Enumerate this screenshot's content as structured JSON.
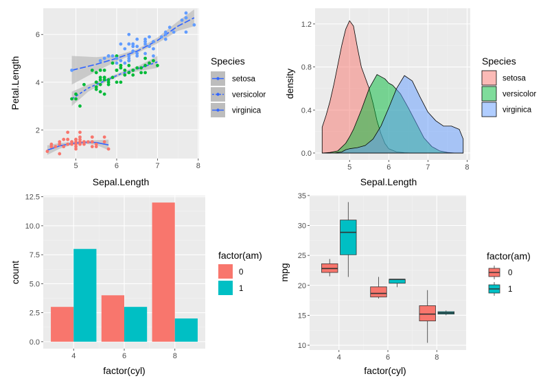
{
  "colors": {
    "panel_bg": "#EBEBEB",
    "grid_major": "#FFFFFF",
    "grid_minor": "#F5F5F5",
    "setosa": "#F8766D",
    "versicolor": "#00BA38",
    "virginica": "#619CFF",
    "smooth_line": "#3366FF",
    "smooth_band": "#BDBDBD",
    "am0": "#F8766D",
    "am1": "#00BFC4"
  },
  "chart_data": [
    {
      "type": "scatter",
      "xlabel": "Sepal.Length",
      "ylabel": "Petal.Length",
      "xlim": [
        4.2,
        8.02
      ],
      "ylim": [
        0.8,
        7.1
      ],
      "xticks": [
        5,
        6,
        7,
        8
      ],
      "yticks": [
        2,
        4,
        6
      ],
      "grid": true,
      "legend": {
        "title": "Species",
        "position": "right",
        "entries": [
          "setosa",
          "versicolor",
          "virginica"
        ]
      },
      "series": [
        {
          "name": "setosa",
          "points": [
            [
              5.1,
              1.4
            ],
            [
              4.9,
              1.4
            ],
            [
              4.7,
              1.3
            ],
            [
              4.6,
              1.5
            ],
            [
              5.0,
              1.4
            ],
            [
              5.4,
              1.7
            ],
            [
              4.6,
              1.4
            ],
            [
              5.0,
              1.5
            ],
            [
              4.4,
              1.4
            ],
            [
              4.9,
              1.5
            ],
            [
              5.4,
              1.5
            ],
            [
              4.8,
              1.6
            ],
            [
              4.8,
              1.4
            ],
            [
              4.3,
              1.1
            ],
            [
              5.8,
              1.2
            ],
            [
              5.7,
              1.5
            ],
            [
              5.4,
              1.3
            ],
            [
              5.1,
              1.4
            ],
            [
              5.7,
              1.7
            ],
            [
              5.1,
              1.5
            ],
            [
              5.4,
              1.7
            ],
            [
              5.1,
              1.5
            ],
            [
              4.6,
              1.0
            ],
            [
              5.1,
              1.7
            ],
            [
              4.8,
              1.9
            ],
            [
              5.0,
              1.6
            ],
            [
              5.0,
              1.6
            ],
            [
              5.2,
              1.5
            ],
            [
              5.2,
              1.4
            ],
            [
              4.7,
              1.6
            ],
            [
              4.8,
              1.6
            ],
            [
              5.4,
              1.5
            ],
            [
              5.2,
              1.5
            ],
            [
              5.5,
              1.4
            ],
            [
              4.9,
              1.5
            ],
            [
              5.0,
              1.2
            ],
            [
              5.5,
              1.3
            ],
            [
              4.9,
              1.4
            ],
            [
              4.4,
              1.3
            ],
            [
              5.1,
              1.5
            ],
            [
              5.0,
              1.3
            ],
            [
              4.5,
              1.3
            ],
            [
              4.4,
              1.3
            ],
            [
              5.0,
              1.6
            ],
            [
              5.1,
              1.9
            ],
            [
              4.8,
              1.4
            ],
            [
              5.1,
              1.6
            ],
            [
              4.6,
              1.4
            ],
            [
              5.3,
              1.5
            ],
            [
              5.0,
              1.4
            ]
          ],
          "smooth": [
            [
              4.3,
              1.15
            ],
            [
              4.6,
              1.33
            ],
            [
              4.9,
              1.43
            ],
            [
              5.2,
              1.48
            ],
            [
              5.5,
              1.47
            ],
            [
              5.8,
              1.37
            ]
          ],
          "band": [
            0.2,
            0.12,
            0.06,
            0.06,
            0.1,
            0.22
          ]
        },
        {
          "name": "versicolor",
          "points": [
            [
              7.0,
              4.7
            ],
            [
              6.4,
              4.5
            ],
            [
              6.9,
              4.9
            ],
            [
              5.5,
              4.0
            ],
            [
              6.5,
              4.6
            ],
            [
              5.7,
              4.5
            ],
            [
              6.3,
              4.7
            ],
            [
              4.9,
              3.3
            ],
            [
              6.6,
              4.6
            ],
            [
              5.2,
              3.9
            ],
            [
              5.0,
              3.5
            ],
            [
              5.9,
              4.2
            ],
            [
              6.0,
              4.0
            ],
            [
              6.1,
              4.7
            ],
            [
              5.6,
              3.6
            ],
            [
              6.7,
              4.4
            ],
            [
              5.6,
              4.5
            ],
            [
              5.8,
              4.1
            ],
            [
              6.2,
              4.5
            ],
            [
              5.6,
              3.9
            ],
            [
              5.9,
              4.8
            ],
            [
              6.1,
              4.0
            ],
            [
              6.3,
              4.9
            ],
            [
              6.1,
              4.7
            ],
            [
              6.4,
              4.3
            ],
            [
              6.6,
              4.4
            ],
            [
              6.8,
              4.8
            ],
            [
              6.7,
              5.0
            ],
            [
              6.0,
              4.5
            ],
            [
              5.7,
              3.5
            ],
            [
              5.5,
              3.8
            ],
            [
              5.5,
              3.7
            ],
            [
              5.8,
              3.9
            ],
            [
              6.0,
              5.1
            ],
            [
              5.4,
              4.5
            ],
            [
              6.0,
              4.5
            ],
            [
              6.7,
              4.7
            ],
            [
              6.3,
              4.4
            ],
            [
              5.6,
              4.1
            ],
            [
              5.5,
              4.0
            ],
            [
              5.5,
              4.4
            ],
            [
              6.1,
              4.6
            ],
            [
              5.8,
              4.0
            ],
            [
              5.0,
              3.3
            ],
            [
              5.6,
              4.2
            ],
            [
              5.7,
              4.2
            ],
            [
              5.7,
              4.2
            ],
            [
              6.2,
              4.3
            ],
            [
              5.1,
              3.0
            ],
            [
              5.7,
              4.1
            ]
          ],
          "smooth": [
            [
              4.9,
              3.3
            ],
            [
              5.3,
              3.75
            ],
            [
              5.7,
              4.05
            ],
            [
              6.1,
              4.35
            ],
            [
              6.5,
              4.55
            ],
            [
              7.0,
              4.85
            ]
          ],
          "band": [
            0.3,
            0.15,
            0.08,
            0.07,
            0.1,
            0.25
          ]
        },
        {
          "name": "virginica",
          "points": [
            [
              6.3,
              6.0
            ],
            [
              5.8,
              5.1
            ],
            [
              7.1,
              5.9
            ],
            [
              6.3,
              5.6
            ],
            [
              6.5,
              5.8
            ],
            [
              7.6,
              6.6
            ],
            [
              4.9,
              4.5
            ],
            [
              7.3,
              6.3
            ],
            [
              6.7,
              5.8
            ],
            [
              7.2,
              6.1
            ],
            [
              6.5,
              5.1
            ],
            [
              6.4,
              5.3
            ],
            [
              6.8,
              5.5
            ],
            [
              5.7,
              5.0
            ],
            [
              5.8,
              5.1
            ],
            [
              6.4,
              5.3
            ],
            [
              6.5,
              5.5
            ],
            [
              7.7,
              6.7
            ],
            [
              7.7,
              6.9
            ],
            [
              6.0,
              5.0
            ],
            [
              6.9,
              5.7
            ],
            [
              5.6,
              4.9
            ],
            [
              7.7,
              6.7
            ],
            [
              6.3,
              4.9
            ],
            [
              6.7,
              5.7
            ],
            [
              7.2,
              6.0
            ],
            [
              6.2,
              4.8
            ],
            [
              6.1,
              4.9
            ],
            [
              6.4,
              5.6
            ],
            [
              7.2,
              5.8
            ],
            [
              7.4,
              6.1
            ],
            [
              7.9,
              6.4
            ],
            [
              6.4,
              5.6
            ],
            [
              6.3,
              5.1
            ],
            [
              6.1,
              5.6
            ],
            [
              7.7,
              6.1
            ],
            [
              6.3,
              5.6
            ],
            [
              6.4,
              5.5
            ],
            [
              6.0,
              4.8
            ],
            [
              6.9,
              5.4
            ],
            [
              6.7,
              5.6
            ],
            [
              6.9,
              5.1
            ],
            [
              5.8,
              5.1
            ],
            [
              6.8,
              5.9
            ],
            [
              6.7,
              5.7
            ],
            [
              6.7,
              5.2
            ],
            [
              6.3,
              5.0
            ],
            [
              6.5,
              5.2
            ],
            [
              6.2,
              5.4
            ],
            [
              5.9,
              5.1
            ]
          ],
          "smooth": [
            [
              4.9,
              4.5
            ],
            [
              5.5,
              4.75
            ],
            [
              6.0,
              5.0
            ],
            [
              6.5,
              5.3
            ],
            [
              7.0,
              5.75
            ],
            [
              7.5,
              6.35
            ],
            [
              7.9,
              6.7
            ]
          ],
          "band": [
            0.6,
            0.3,
            0.12,
            0.08,
            0.12,
            0.2,
            0.35
          ]
        }
      ]
    },
    {
      "type": "area",
      "xlabel": "Sepal.Length",
      "ylabel": "density",
      "xlim": [
        4.12,
        8.08
      ],
      "ylim": [
        -0.064,
        1.346
      ],
      "xticks": [
        5,
        6,
        7,
        8
      ],
      "yticks": [
        0.0,
        0.4,
        0.8,
        1.2
      ],
      "ytick_labels": [
        "0.0",
        "0.4",
        "0.8",
        "1.2"
      ],
      "grid": true,
      "legend": {
        "title": "Species",
        "position": "right",
        "entries": [
          "setosa",
          "versicolor",
          "virginica"
        ]
      },
      "series": [
        {
          "name": "setosa",
          "x": [
            4.3,
            4.4,
            4.5,
            4.6,
            4.7,
            4.8,
            4.9,
            5.0,
            5.1,
            5.2,
            5.3,
            5.4,
            5.5,
            5.6,
            5.7,
            5.8,
            5.9,
            6.0,
            6.2,
            6.4,
            6.6,
            6.8,
            7.0,
            7.2,
            7.4,
            7.6,
            7.9
          ],
          "y": [
            0.24,
            0.35,
            0.48,
            0.64,
            0.82,
            1.0,
            1.15,
            1.23,
            1.18,
            0.98,
            0.8,
            0.7,
            0.6,
            0.46,
            0.3,
            0.18,
            0.09,
            0.04,
            0.01,
            0.003,
            0,
            0,
            0,
            0,
            0,
            0,
            0
          ]
        },
        {
          "name": "versicolor",
          "x": [
            4.3,
            4.5,
            4.7,
            4.9,
            5.0,
            5.1,
            5.3,
            5.5,
            5.7,
            5.9,
            6.0,
            6.1,
            6.3,
            6.5,
            6.7,
            6.9,
            7.1,
            7.3,
            7.5,
            7.7,
            7.9
          ],
          "y": [
            0,
            0.005,
            0.02,
            0.09,
            0.15,
            0.22,
            0.4,
            0.6,
            0.73,
            0.69,
            0.65,
            0.63,
            0.55,
            0.42,
            0.28,
            0.14,
            0.06,
            0.02,
            0.005,
            0,
            0
          ]
        },
        {
          "name": "virginica",
          "x": [
            4.3,
            4.6,
            4.8,
            4.9,
            5.0,
            5.2,
            5.4,
            5.6,
            5.8,
            6.0,
            6.2,
            6.4,
            6.6,
            6.8,
            7.0,
            7.2,
            7.4,
            7.6,
            7.8,
            7.9
          ],
          "y": [
            0,
            0,
            0.01,
            0.03,
            0.04,
            0.05,
            0.07,
            0.13,
            0.25,
            0.42,
            0.6,
            0.72,
            0.67,
            0.52,
            0.38,
            0.3,
            0.25,
            0.25,
            0.22,
            0.13
          ]
        }
      ]
    },
    {
      "type": "bar",
      "xlabel": "factor(cyl)",
      "ylabel": "count",
      "categories": [
        "4",
        "6",
        "8"
      ],
      "ylim": [
        -0.6,
        12.6
      ],
      "yticks": [
        0.0,
        2.5,
        5.0,
        7.5,
        10.0,
        12.5
      ],
      "ytick_labels": [
        "0.0",
        "2.5",
        "5.0",
        "7.5",
        "10.0",
        "12.5"
      ],
      "grid": true,
      "position": "dodge",
      "legend": {
        "title": "factor(am)",
        "position": "right",
        "entries": [
          "0",
          "1"
        ]
      },
      "series": [
        {
          "name": "0",
          "values": [
            3,
            4,
            12
          ]
        },
        {
          "name": "1",
          "values": [
            8,
            3,
            2
          ]
        }
      ]
    },
    {
      "type": "box",
      "xlabel": "factor(cyl)",
      "ylabel": "mpg",
      "categories": [
        "4",
        "6",
        "8"
      ],
      "ylim": [
        9.2,
        35.1
      ],
      "yticks": [
        10,
        15,
        20,
        25,
        30,
        35
      ],
      "grid": true,
      "legend": {
        "title": "factor(am)",
        "position": "right",
        "entries": [
          "0",
          "1"
        ]
      },
      "series": [
        {
          "name": "0",
          "boxes": [
            {
              "min": 21.5,
              "q1": 22.15,
              "median": 22.8,
              "q3": 23.6,
              "max": 24.4
            },
            {
              "min": 17.8,
              "q1": 18.05,
              "median": 18.65,
              "q3": 19.75,
              "max": 21.4
            },
            {
              "min": 10.4,
              "q1": 14.05,
              "median": 15.2,
              "q3": 16.6,
              "max": 19.2
            }
          ]
        },
        {
          "name": "1",
          "boxes": [
            {
              "min": 21.4,
              "q1": 25.1,
              "median": 28.85,
              "q3": 30.9,
              "max": 33.9
            },
            {
              "min": 19.7,
              "q1": 20.35,
              "median": 21.0,
              "q3": 21.0,
              "max": 21.0
            },
            {
              "min": 15.0,
              "q1": 15.2,
              "median": 15.4,
              "q3": 15.6,
              "max": 15.8
            }
          ]
        }
      ]
    }
  ]
}
